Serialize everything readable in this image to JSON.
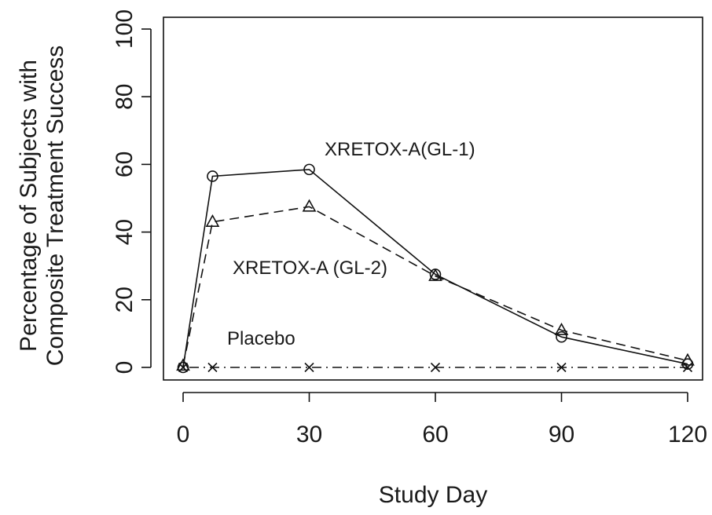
{
  "chart_data": {
    "type": "line",
    "title": "",
    "xlabel": "Study Day",
    "ylabel_line1": "Percentage of Subjects with",
    "ylabel_line2": "Composite Treatment Success",
    "xlim": [
      0,
      120
    ],
    "ylim": [
      0,
      100
    ],
    "x_ticks": [
      0,
      30,
      60,
      90,
      120
    ],
    "y_ticks": [
      0,
      20,
      40,
      60,
      80,
      100
    ],
    "grid": false,
    "legend": "none",
    "series": [
      {
        "name": "XRETOX-A(GL-1)",
        "line_style": "solid",
        "marker": "circle",
        "x": [
          0,
          7,
          30,
          60,
          90,
          120
        ],
        "y": [
          0,
          56.5,
          58.5,
          27.5,
          9,
          1
        ]
      },
      {
        "name": "XRETOX-A (GL-2)",
        "line_style": "dashed",
        "marker": "triangle",
        "x": [
          0,
          7,
          30,
          60,
          90,
          120
        ],
        "y": [
          0.5,
          43,
          47.5,
          27,
          11,
          2
        ]
      },
      {
        "name": "Placebo",
        "line_style": "dotdash",
        "marker": "x",
        "x": [
          0,
          7,
          30,
          60,
          90,
          120
        ],
        "y": [
          0,
          0,
          0,
          0,
          0,
          0
        ]
      }
    ]
  }
}
